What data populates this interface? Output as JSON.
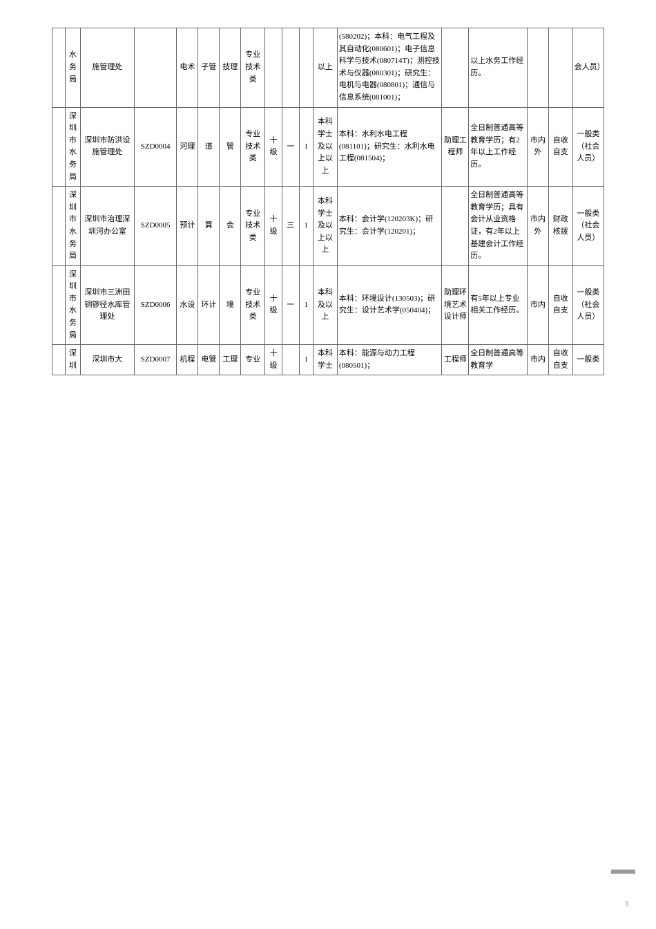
{
  "pageNumber": "3",
  "rows": [
    {
      "dept": "水务局",
      "office": "施管理处",
      "code": "",
      "cat1": "电术",
      "cat2": "子管",
      "cat3": "技理",
      "type": "专业技术类",
      "level": "",
      "grade": "",
      "count": "",
      "edu": "以上",
      "major": "(580202)；本科：电气工程及其自动化(080601)；电子信息科学与技术(080714T)；测控技术与仪器(080301)；研究生：电机与电器(080801)；通信与信息系统(081001)；",
      "title": "",
      "req": "以上水务工作经历。",
      "exam": "",
      "fund": "",
      "category": "会人员）"
    },
    {
      "dept": "深圳市水务局",
      "office": "深圳市防洪设施管理处",
      "code": "SZD0004",
      "cat1": "河理",
      "cat2": "道",
      "cat3": "管",
      "type": "专业技术类",
      "level": "十级",
      "grade": "一",
      "count": "1",
      "edu": "本科学士及以上以上",
      "major": "本科：水利水电工程(081101)；研究生：水利水电工程(081504)；",
      "title": "助理工程师",
      "req": "全日制普通高等教育学历；有2年以上工作经历。",
      "exam": "市内外",
      "fund": "自收自支",
      "category": "一般类（社会人员）"
    },
    {
      "dept": "深圳市水务局",
      "office": "深圳市治理深圳河办公室",
      "code": "SZD0005",
      "cat1": "预计",
      "cat2": "算",
      "cat3": "会",
      "type": "专业技术类",
      "level": "十级",
      "grade": "三",
      "count": "1",
      "edu": "本科学士及以上以上",
      "major": "本科：会计学(120203K)；研究生：会计学(120201)；",
      "title": "",
      "req": "全日制普通高等教育学历；具有会计从业资格证，有2年以上基建会计工作经历。",
      "exam": "市内外",
      "fund": "财政核拨",
      "category": "一般类（社会人员）"
    },
    {
      "dept": "深圳市水务局",
      "office": "深圳市三洲田铜锣径水库管理处",
      "code": "SZD0006",
      "cat1": "水设",
      "cat2": "环计",
      "cat3": "境",
      "type": "专业技术类",
      "level": "十级",
      "grade": "一",
      "count": "1",
      "edu": "本科及以上",
      "major": "本科：环境设计(130503)；研究生：设计艺术学(050404)；",
      "title": "助理环境艺术设计师",
      "req": "有5年以上专业相关工作经历。",
      "exam": "市内",
      "fund": "自收自支",
      "category": "一般类（社会人员）"
    },
    {
      "dept": "深圳",
      "office": "深圳市大",
      "code": "SZD0007",
      "cat1": "机程",
      "cat2": "电管",
      "cat3": "工理",
      "type": "专业",
      "level": "十级",
      "grade": "",
      "count": "1",
      "edu": "本科学士",
      "major": "本科：能源与动力工程(080501)；",
      "title": "工程师",
      "req": "全日制普通高等教育学",
      "exam": "市内",
      "fund": "自收自支",
      "category": "一般类"
    }
  ]
}
